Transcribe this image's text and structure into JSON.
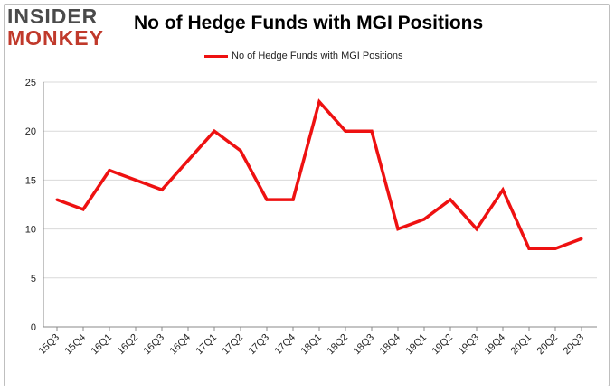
{
  "logo": {
    "line1": "INSIDER",
    "line2": "MONKEY"
  },
  "chart_data": {
    "type": "line",
    "title": "No of Hedge Funds with MGI Positions",
    "categories": [
      "15Q3",
      "15Q4",
      "16Q1",
      "16Q2",
      "16Q3",
      "16Q4",
      "17Q1",
      "17Q2",
      "17Q3",
      "17Q4",
      "18Q1",
      "18Q2",
      "18Q3",
      "18Q4",
      "19Q1",
      "19Q2",
      "19Q3",
      "19Q4",
      "20Q1",
      "20Q2",
      "20Q3"
    ],
    "series": [
      {
        "name": "No of Hedge Funds with MGI Positions",
        "values": [
          13,
          12,
          16,
          15,
          14,
          17,
          20,
          18,
          13,
          13,
          23,
          20,
          20,
          10,
          11,
          13,
          10,
          14,
          8,
          8,
          9
        ],
        "color": "#ee1111"
      }
    ],
    "ylim": [
      0,
      25
    ],
    "yticks": [
      0,
      5,
      10,
      15,
      20,
      25
    ],
    "xlabel": "",
    "ylabel": "",
    "grid": true,
    "legend_position": "top-center"
  }
}
